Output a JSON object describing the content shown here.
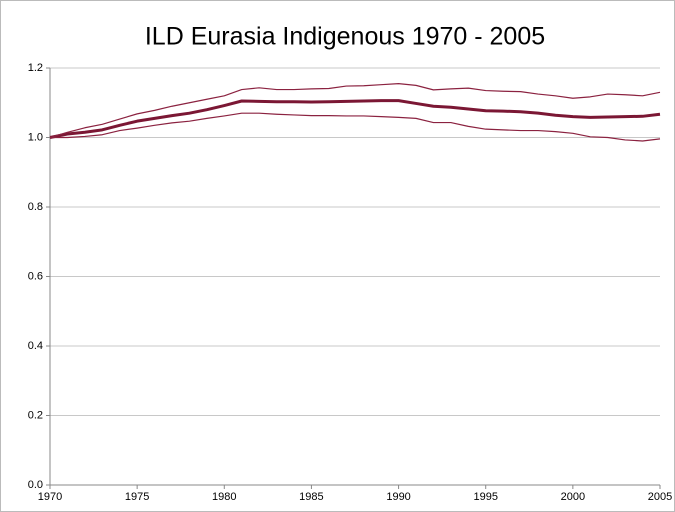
{
  "chart_data": {
    "type": "line",
    "title": "ILD Eurasia Indigenous 1970 - 2005",
    "x": [
      1970,
      1971,
      1972,
      1973,
      1974,
      1975,
      1976,
      1977,
      1978,
      1979,
      1980,
      1981,
      1982,
      1983,
      1984,
      1985,
      1986,
      1987,
      1988,
      1989,
      1990,
      1991,
      1992,
      1993,
      1994,
      1995,
      1996,
      1997,
      1998,
      1999,
      2000,
      2001,
      2002,
      2003,
      2004,
      2005
    ],
    "series": [
      {
        "color": "#7b1734",
        "values": [
          1.0,
          1.01,
          1.015,
          1.022,
          1.035,
          1.047,
          1.055,
          1.063,
          1.07,
          1.08,
          1.092,
          1.105,
          1.104,
          1.103,
          1.103,
          1.102,
          1.103,
          1.104,
          1.105,
          1.106,
          1.106,
          1.098,
          1.09,
          1.087,
          1.082,
          1.077,
          1.076,
          1.074,
          1.07,
          1.064,
          1.06,
          1.058,
          1.059,
          1.06,
          1.061,
          1.067
        ]
      },
      {
        "color": "#8b2240",
        "values": [
          1.0,
          1.015,
          1.028,
          1.038,
          1.053,
          1.068,
          1.078,
          1.09,
          1.1,
          1.11,
          1.12,
          1.138,
          1.143,
          1.138,
          1.138,
          1.14,
          1.141,
          1.148,
          1.149,
          1.152,
          1.155,
          1.15,
          1.137,
          1.14,
          1.142,
          1.135,
          1.133,
          1.132,
          1.125,
          1.12,
          1.113,
          1.117,
          1.125,
          1.123,
          1.12,
          1.13
        ]
      },
      {
        "color": "#8b2240",
        "values": [
          1.0,
          1.0,
          1.003,
          1.008,
          1.02,
          1.027,
          1.035,
          1.042,
          1.047,
          1.055,
          1.062,
          1.07,
          1.07,
          1.067,
          1.065,
          1.063,
          1.063,
          1.062,
          1.062,
          1.06,
          1.058,
          1.055,
          1.043,
          1.043,
          1.032,
          1.024,
          1.022,
          1.02,
          1.02,
          1.017,
          1.012,
          1.002,
          1.0,
          0.993,
          0.99,
          0.996
        ]
      }
    ],
    "xlim": [
      1970,
      2005
    ],
    "xticks": [
      1970,
      1975,
      1980,
      1985,
      1990,
      1995,
      2000,
      2005
    ],
    "ylim": [
      0,
      1.2
    ],
    "yticks": [
      {
        "value": 0,
        "label": "0.0"
      },
      0.2,
      0.4,
      0.6,
      0.8,
      {
        "value": 1,
        "label": "1.0"
      },
      1.2
    ],
    "grid": true
  }
}
